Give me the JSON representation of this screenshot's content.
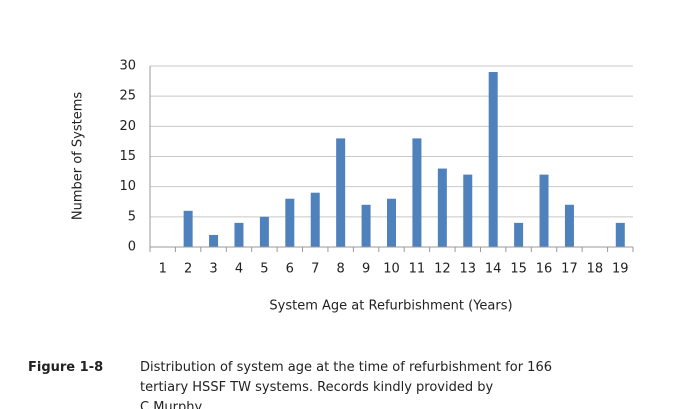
{
  "chart_data": {
    "type": "bar",
    "x_label": "System Age at Refurbishment (Years)",
    "y_label": "Number of Systems",
    "categories": [
      "1",
      "2",
      "3",
      "4",
      "5",
      "6",
      "7",
      "8",
      "9",
      "10",
      "11",
      "12",
      "13",
      "14",
      "15",
      "16",
      "17",
      "18",
      "19"
    ],
    "values": [
      0,
      6,
      2,
      4,
      5,
      8,
      9,
      18,
      7,
      8,
      18,
      13,
      12,
      29,
      4,
      12,
      7,
      0,
      4
    ],
    "color": "#4f81bd",
    "ylim": [
      0,
      30
    ],
    "yticks": [
      0,
      5,
      10,
      15,
      20,
      25,
      30
    ],
    "grid": true
  },
  "caption": {
    "label": "Figure 1-8",
    "text": "Distribution of system age at the time of refurbishment for 166 tertiary HSSF TW systems.  Records kindly provided by C.Murphy."
  }
}
